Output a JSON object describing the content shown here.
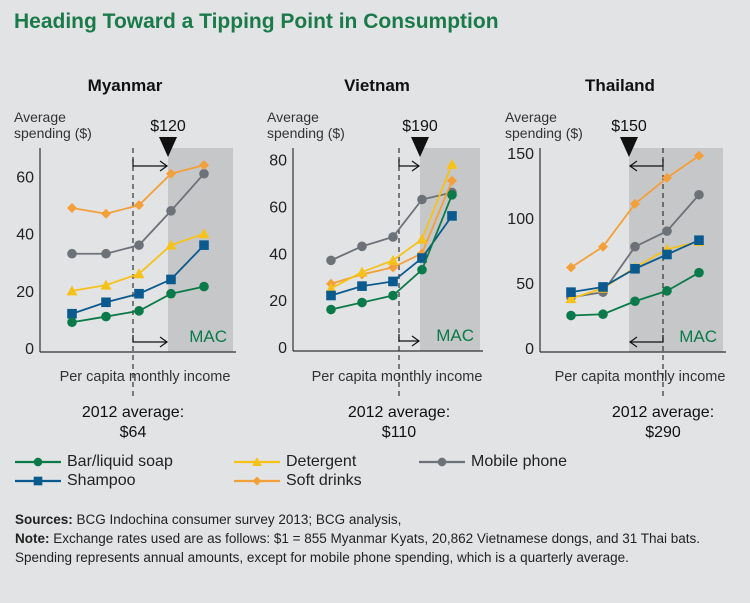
{
  "title": "Heading Toward a Tipping Point in Consumption",
  "legend": [
    {
      "name": "Bar/liquid soap",
      "color": "#0a7a4a",
      "marker": "circle"
    },
    {
      "name": "Shampoo",
      "color": "#0b5a8f",
      "marker": "square"
    },
    {
      "name": "Detergent",
      "color": "#f6c21a",
      "marker": "triangle"
    },
    {
      "name": "Soft drinks",
      "color": "#f4a03a",
      "marker": "diamond"
    },
    {
      "name": "Mobile phone",
      "color": "#6c7278",
      "marker": "circle"
    }
  ],
  "notes": {
    "sources_label": "Sources:",
    "sources_text": " BCG Indochina consumer survey 2013; BCG analysis,",
    "note_label": "Note:",
    "note_text": " Exchange rates used are as follows: $1 = 855 Myanmar Kyats, 20,862 Vietnamese dongs, and 31 Thai bats. Spending represents annual amounts, except for mobile phone spending, which is a quarterly average."
  },
  "chart_data": [
    {
      "type": "line",
      "title": "Myanmar",
      "ylabel": "Average spending ($)",
      "xlabel": "Per capita monthly income",
      "ylim": [
        0,
        70
      ],
      "yticks": [
        0,
        20,
        40,
        60
      ],
      "threshold_label": "$120",
      "zone_label": "MAC",
      "average_label": "2012 average:",
      "average_value": "$64",
      "arrow_direction": "right",
      "series": [
        {
          "name": "Bar/liquid soap",
          "values": [
            9,
            11,
            13,
            19,
            21.5
          ]
        },
        {
          "name": "Shampoo",
          "values": [
            12,
            16,
            19,
            24,
            36
          ]
        },
        {
          "name": "Detergent",
          "values": [
            20,
            22,
            26,
            36,
            40
          ]
        },
        {
          "name": "Soft drinks",
          "values": [
            49,
            47,
            50,
            61,
            64
          ]
        },
        {
          "name": "Mobile phone",
          "values": [
            33,
            33,
            36,
            48,
            61
          ]
        }
      ]
    },
    {
      "type": "line",
      "title": "Vietnam",
      "ylabel": "Average spending ($)",
      "xlabel": "Per capita monthly income",
      "ylim": [
        0,
        85
      ],
      "yticks": [
        0,
        20,
        40,
        60,
        80
      ],
      "threshold_label": "$190",
      "zone_label": "MAC",
      "average_label": "2012 average:",
      "average_value": "$110",
      "arrow_direction": "right",
      "series": [
        {
          "name": "Bar/liquid soap",
          "values": [
            16,
            19,
            22,
            33,
            65
          ]
        },
        {
          "name": "Shampoo",
          "values": [
            22,
            26,
            28,
            38,
            56
          ]
        },
        {
          "name": "Detergent",
          "values": [
            25,
            32,
            37,
            46,
            78
          ]
        },
        {
          "name": "Soft drinks",
          "values": [
            27,
            31,
            34,
            40,
            71
          ]
        },
        {
          "name": "Mobile phone",
          "values": [
            37,
            43,
            47,
            63,
            66
          ]
        }
      ]
    },
    {
      "type": "line",
      "title": "Thailand",
      "ylabel": "Average spending ($)",
      "xlabel": "Per capita monthly income",
      "ylim": [
        0,
        154
      ],
      "yticks": [
        0,
        50,
        100,
        150
      ],
      "threshold_label": "$150",
      "zone_label": "MAC",
      "average_label": "2012 average:",
      "average_value": "$290",
      "arrow_direction": "left",
      "series": [
        {
          "name": "Bar/liquid soap",
          "values": [
            25,
            26,
            36,
            44,
            58
          ]
        },
        {
          "name": "Shampoo",
          "values": [
            43,
            47,
            61,
            72,
            83
          ]
        },
        {
          "name": "Detergent",
          "values": [
            38,
            46,
            62,
            76,
            82
          ]
        },
        {
          "name": "Soft drinks",
          "values": [
            62,
            78,
            111,
            131,
            148
          ]
        },
        {
          "name": "Mobile phone",
          "values": [
            39,
            43,
            78,
            90,
            118
          ]
        }
      ]
    }
  ]
}
